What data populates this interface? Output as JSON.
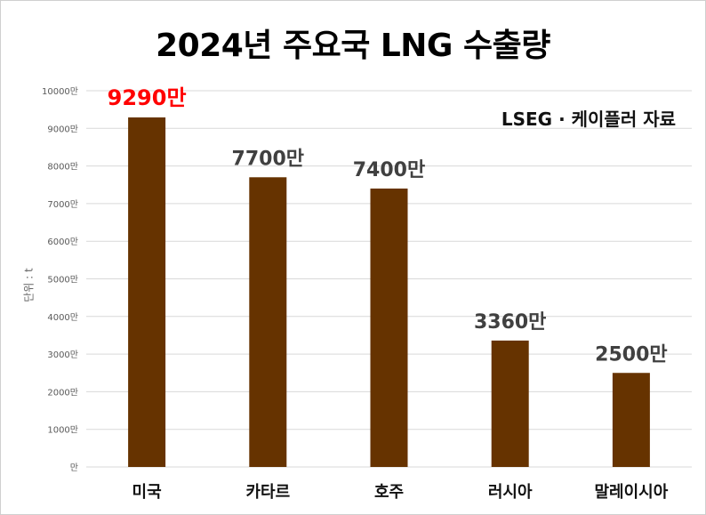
{
  "chart_data": {
    "type": "bar",
    "title": "2024년 주요국 LNG 수출량",
    "source": "LSEG · 케이플러 자료",
    "ylabel": "단위 : t",
    "categories": [
      "미국",
      "카타르",
      "호주",
      "러시아",
      "말레이시아"
    ],
    "values": [
      9290,
      7700,
      7400,
      3360,
      2500
    ],
    "data_labels": [
      "9290만",
      "7700만",
      "7400만",
      "3360만",
      "2500만"
    ],
    "highlight_index": 0,
    "ylim": [
      0,
      10000
    ],
    "yticks": [
      0,
      1000,
      2000,
      3000,
      4000,
      5000,
      6000,
      7000,
      8000,
      9000,
      10000
    ],
    "ytick_labels": [
      "만",
      "1000만",
      "2000만",
      "3000만",
      "4000만",
      "5000만",
      "6000만",
      "7000만",
      "8000만",
      "9000만",
      "10000만"
    ],
    "grid": true,
    "colors": {
      "bar": "#663300",
      "highlight_label": "#ff0000",
      "label": "#404040",
      "grid": "#d9d9d9"
    }
  }
}
